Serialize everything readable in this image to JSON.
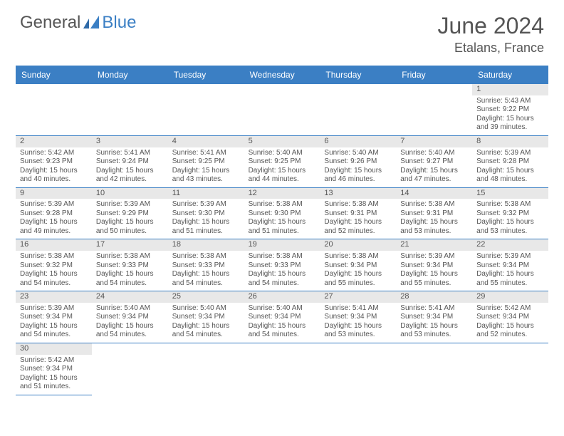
{
  "brand": {
    "word1": "General",
    "word2": "Blue"
  },
  "title": {
    "month": "June 2024",
    "location": "Etalans, France"
  },
  "header_color": "#3b7fc4",
  "header_bg": "#e8e8e8",
  "days": [
    "Sunday",
    "Monday",
    "Tuesday",
    "Wednesday",
    "Thursday",
    "Friday",
    "Saturday"
  ],
  "weeks": [
    [
      null,
      null,
      null,
      null,
      null,
      null,
      {
        "n": "1",
        "sr": "Sunrise: 5:43 AM",
        "ss": "Sunset: 9:22 PM",
        "d1": "Daylight: 15 hours",
        "d2": "and 39 minutes."
      }
    ],
    [
      {
        "n": "2",
        "sr": "Sunrise: 5:42 AM",
        "ss": "Sunset: 9:23 PM",
        "d1": "Daylight: 15 hours",
        "d2": "and 40 minutes."
      },
      {
        "n": "3",
        "sr": "Sunrise: 5:41 AM",
        "ss": "Sunset: 9:24 PM",
        "d1": "Daylight: 15 hours",
        "d2": "and 42 minutes."
      },
      {
        "n": "4",
        "sr": "Sunrise: 5:41 AM",
        "ss": "Sunset: 9:25 PM",
        "d1": "Daylight: 15 hours",
        "d2": "and 43 minutes."
      },
      {
        "n": "5",
        "sr": "Sunrise: 5:40 AM",
        "ss": "Sunset: 9:25 PM",
        "d1": "Daylight: 15 hours",
        "d2": "and 44 minutes."
      },
      {
        "n": "6",
        "sr": "Sunrise: 5:40 AM",
        "ss": "Sunset: 9:26 PM",
        "d1": "Daylight: 15 hours",
        "d2": "and 46 minutes."
      },
      {
        "n": "7",
        "sr": "Sunrise: 5:40 AM",
        "ss": "Sunset: 9:27 PM",
        "d1": "Daylight: 15 hours",
        "d2": "and 47 minutes."
      },
      {
        "n": "8",
        "sr": "Sunrise: 5:39 AM",
        "ss": "Sunset: 9:28 PM",
        "d1": "Daylight: 15 hours",
        "d2": "and 48 minutes."
      }
    ],
    [
      {
        "n": "9",
        "sr": "Sunrise: 5:39 AM",
        "ss": "Sunset: 9:28 PM",
        "d1": "Daylight: 15 hours",
        "d2": "and 49 minutes."
      },
      {
        "n": "10",
        "sr": "Sunrise: 5:39 AM",
        "ss": "Sunset: 9:29 PM",
        "d1": "Daylight: 15 hours",
        "d2": "and 50 minutes."
      },
      {
        "n": "11",
        "sr": "Sunrise: 5:39 AM",
        "ss": "Sunset: 9:30 PM",
        "d1": "Daylight: 15 hours",
        "d2": "and 51 minutes."
      },
      {
        "n": "12",
        "sr": "Sunrise: 5:38 AM",
        "ss": "Sunset: 9:30 PM",
        "d1": "Daylight: 15 hours",
        "d2": "and 51 minutes."
      },
      {
        "n": "13",
        "sr": "Sunrise: 5:38 AM",
        "ss": "Sunset: 9:31 PM",
        "d1": "Daylight: 15 hours",
        "d2": "and 52 minutes."
      },
      {
        "n": "14",
        "sr": "Sunrise: 5:38 AM",
        "ss": "Sunset: 9:31 PM",
        "d1": "Daylight: 15 hours",
        "d2": "and 53 minutes."
      },
      {
        "n": "15",
        "sr": "Sunrise: 5:38 AM",
        "ss": "Sunset: 9:32 PM",
        "d1": "Daylight: 15 hours",
        "d2": "and 53 minutes."
      }
    ],
    [
      {
        "n": "16",
        "sr": "Sunrise: 5:38 AM",
        "ss": "Sunset: 9:32 PM",
        "d1": "Daylight: 15 hours",
        "d2": "and 54 minutes."
      },
      {
        "n": "17",
        "sr": "Sunrise: 5:38 AM",
        "ss": "Sunset: 9:33 PM",
        "d1": "Daylight: 15 hours",
        "d2": "and 54 minutes."
      },
      {
        "n": "18",
        "sr": "Sunrise: 5:38 AM",
        "ss": "Sunset: 9:33 PM",
        "d1": "Daylight: 15 hours",
        "d2": "and 54 minutes."
      },
      {
        "n": "19",
        "sr": "Sunrise: 5:38 AM",
        "ss": "Sunset: 9:33 PM",
        "d1": "Daylight: 15 hours",
        "d2": "and 54 minutes."
      },
      {
        "n": "20",
        "sr": "Sunrise: 5:38 AM",
        "ss": "Sunset: 9:34 PM",
        "d1": "Daylight: 15 hours",
        "d2": "and 55 minutes."
      },
      {
        "n": "21",
        "sr": "Sunrise: 5:39 AM",
        "ss": "Sunset: 9:34 PM",
        "d1": "Daylight: 15 hours",
        "d2": "and 55 minutes."
      },
      {
        "n": "22",
        "sr": "Sunrise: 5:39 AM",
        "ss": "Sunset: 9:34 PM",
        "d1": "Daylight: 15 hours",
        "d2": "and 55 minutes."
      }
    ],
    [
      {
        "n": "23",
        "sr": "Sunrise: 5:39 AM",
        "ss": "Sunset: 9:34 PM",
        "d1": "Daylight: 15 hours",
        "d2": "and 54 minutes."
      },
      {
        "n": "24",
        "sr": "Sunrise: 5:40 AM",
        "ss": "Sunset: 9:34 PM",
        "d1": "Daylight: 15 hours",
        "d2": "and 54 minutes."
      },
      {
        "n": "25",
        "sr": "Sunrise: 5:40 AM",
        "ss": "Sunset: 9:34 PM",
        "d1": "Daylight: 15 hours",
        "d2": "and 54 minutes."
      },
      {
        "n": "26",
        "sr": "Sunrise: 5:40 AM",
        "ss": "Sunset: 9:34 PM",
        "d1": "Daylight: 15 hours",
        "d2": "and 54 minutes."
      },
      {
        "n": "27",
        "sr": "Sunrise: 5:41 AM",
        "ss": "Sunset: 9:34 PM",
        "d1": "Daylight: 15 hours",
        "d2": "and 53 minutes."
      },
      {
        "n": "28",
        "sr": "Sunrise: 5:41 AM",
        "ss": "Sunset: 9:34 PM",
        "d1": "Daylight: 15 hours",
        "d2": "and 53 minutes."
      },
      {
        "n": "29",
        "sr": "Sunrise: 5:42 AM",
        "ss": "Sunset: 9:34 PM",
        "d1": "Daylight: 15 hours",
        "d2": "and 52 minutes."
      }
    ],
    [
      {
        "n": "30",
        "sr": "Sunrise: 5:42 AM",
        "ss": "Sunset: 9:34 PM",
        "d1": "Daylight: 15 hours",
        "d2": "and 51 minutes."
      },
      null,
      null,
      null,
      null,
      null,
      null
    ]
  ]
}
